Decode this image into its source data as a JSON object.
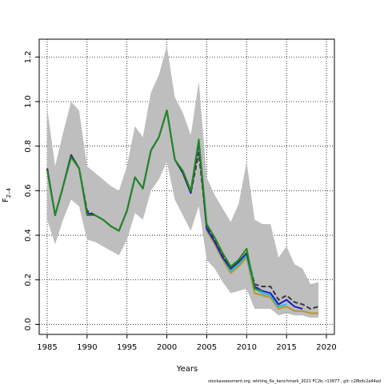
{
  "chart_data": {
    "type": "line",
    "xlabel": "Years",
    "ylabel": "F",
    "ylabel_subscript": "2–4",
    "footnote": "stockassessment.org, whiting_6a_benchmark_2021 FC2b, r13877 , git: c28bdc2a44ad",
    "xlim": [
      1984,
      2021
    ],
    "ylim": [
      -0.045,
      1.28
    ],
    "xticks": [
      1985,
      1990,
      1995,
      2000,
      2005,
      2010,
      2015,
      2020
    ],
    "yticks": [
      "0.0",
      "0.2",
      "0.4",
      "0.6",
      "0.8",
      "1.0",
      "1.2"
    ],
    "grid": true,
    "band": {
      "color": "#bebebe",
      "x": [
        1985,
        1986,
        1987,
        1988,
        1989,
        1990,
        1991,
        1992,
        1993,
        1994,
        1995,
        1996,
        1997,
        1998,
        1999,
        2000,
        2001,
        2002,
        2003,
        2004,
        2005,
        2006,
        2007,
        2008,
        2009,
        2010,
        2011,
        2012,
        2013,
        2014,
        2015,
        2016,
        2017,
        2018,
        2019
      ],
      "upper": [
        0.97,
        0.71,
        0.86,
        1.0,
        0.96,
        0.71,
        0.68,
        0.65,
        0.62,
        0.6,
        0.71,
        0.89,
        0.84,
        1.04,
        1.12,
        1.25,
        1.02,
        0.95,
        0.85,
        1.09,
        0.66,
        0.58,
        0.52,
        0.46,
        0.54,
        0.73,
        0.47,
        0.45,
        0.45,
        0.3,
        0.35,
        0.27,
        0.25,
        0.18,
        0.19
      ],
      "lower": [
        0.47,
        0.36,
        0.47,
        0.56,
        0.53,
        0.38,
        0.37,
        0.35,
        0.33,
        0.31,
        0.38,
        0.5,
        0.47,
        0.6,
        0.65,
        0.73,
        0.56,
        0.49,
        0.42,
        0.53,
        0.29,
        0.25,
        0.19,
        0.14,
        0.15,
        0.16,
        0.07,
        0.07,
        0.07,
        0.04,
        0.05,
        0.04,
        0.04,
        0.03,
        0.03
      ]
    },
    "series": [
      {
        "color": "#b8962e",
        "values": [
          0.7,
          0.49,
          0.62,
          0.76,
          0.7,
          0.5,
          0.49,
          0.47,
          0.44,
          0.42,
          0.51,
          0.66,
          0.61,
          0.78,
          0.84,
          0.96,
          0.74,
          0.68,
          0.59,
          0.82,
          0.42,
          0.36,
          0.29,
          0.23,
          0.26,
          0.3,
          0.14,
          0.13,
          0.12,
          0.07,
          0.08,
          0.06,
          0.06,
          0.05,
          0.05
        ],
        "x_end": 2019
      },
      {
        "color": "#23bbd3",
        "values": [
          0.7,
          0.49,
          0.62,
          0.76,
          0.7,
          0.5,
          0.49,
          0.47,
          0.44,
          0.42,
          0.51,
          0.66,
          0.61,
          0.78,
          0.84,
          0.96,
          0.74,
          0.68,
          0.59,
          0.82,
          0.43,
          0.37,
          0.3,
          0.24,
          0.27,
          0.31,
          0.16,
          0.14,
          0.13,
          0.08,
          0.09
        ],
        "x_end": 2015
      },
      {
        "color": "#1c1ccd",
        "values": [
          0.7,
          0.49,
          0.62,
          0.76,
          0.7,
          0.5,
          0.49,
          0.47,
          0.44,
          0.42,
          0.51,
          0.66,
          0.61,
          0.78,
          0.84,
          0.96,
          0.74,
          0.68,
          0.59,
          0.82,
          0.43,
          0.37,
          0.3,
          0.25,
          0.28,
          0.32,
          0.17,
          0.15,
          0.14,
          0.09,
          0.11,
          0.08,
          0.07
        ],
        "x_end": 2017
      },
      {
        "color": "#3a3a3a",
        "dashed": true,
        "values": [
          0.7,
          0.49,
          0.62,
          0.76,
          0.7,
          0.51,
          0.49,
          0.47,
          0.44,
          0.42,
          0.51,
          0.66,
          0.61,
          0.78,
          0.84,
          0.96,
          0.74,
          0.68,
          0.59,
          0.77,
          0.44,
          0.38,
          0.31,
          0.25,
          0.28,
          0.32,
          0.18,
          0.17,
          0.17,
          0.11,
          0.13,
          0.1,
          0.09,
          0.07,
          0.08
        ],
        "x_end": 2019
      },
      {
        "color": "#228b22",
        "values": [
          0.69,
          0.49,
          0.62,
          0.75,
          0.7,
          0.49,
          0.49,
          0.47,
          0.44,
          0.42,
          0.51,
          0.66,
          0.61,
          0.78,
          0.84,
          0.96,
          0.74,
          0.69,
          0.6,
          0.83,
          0.45,
          0.39,
          0.32,
          0.26,
          0.29,
          0.34,
          0.16,
          0.15
        ],
        "x_end": 2012
      }
    ]
  }
}
